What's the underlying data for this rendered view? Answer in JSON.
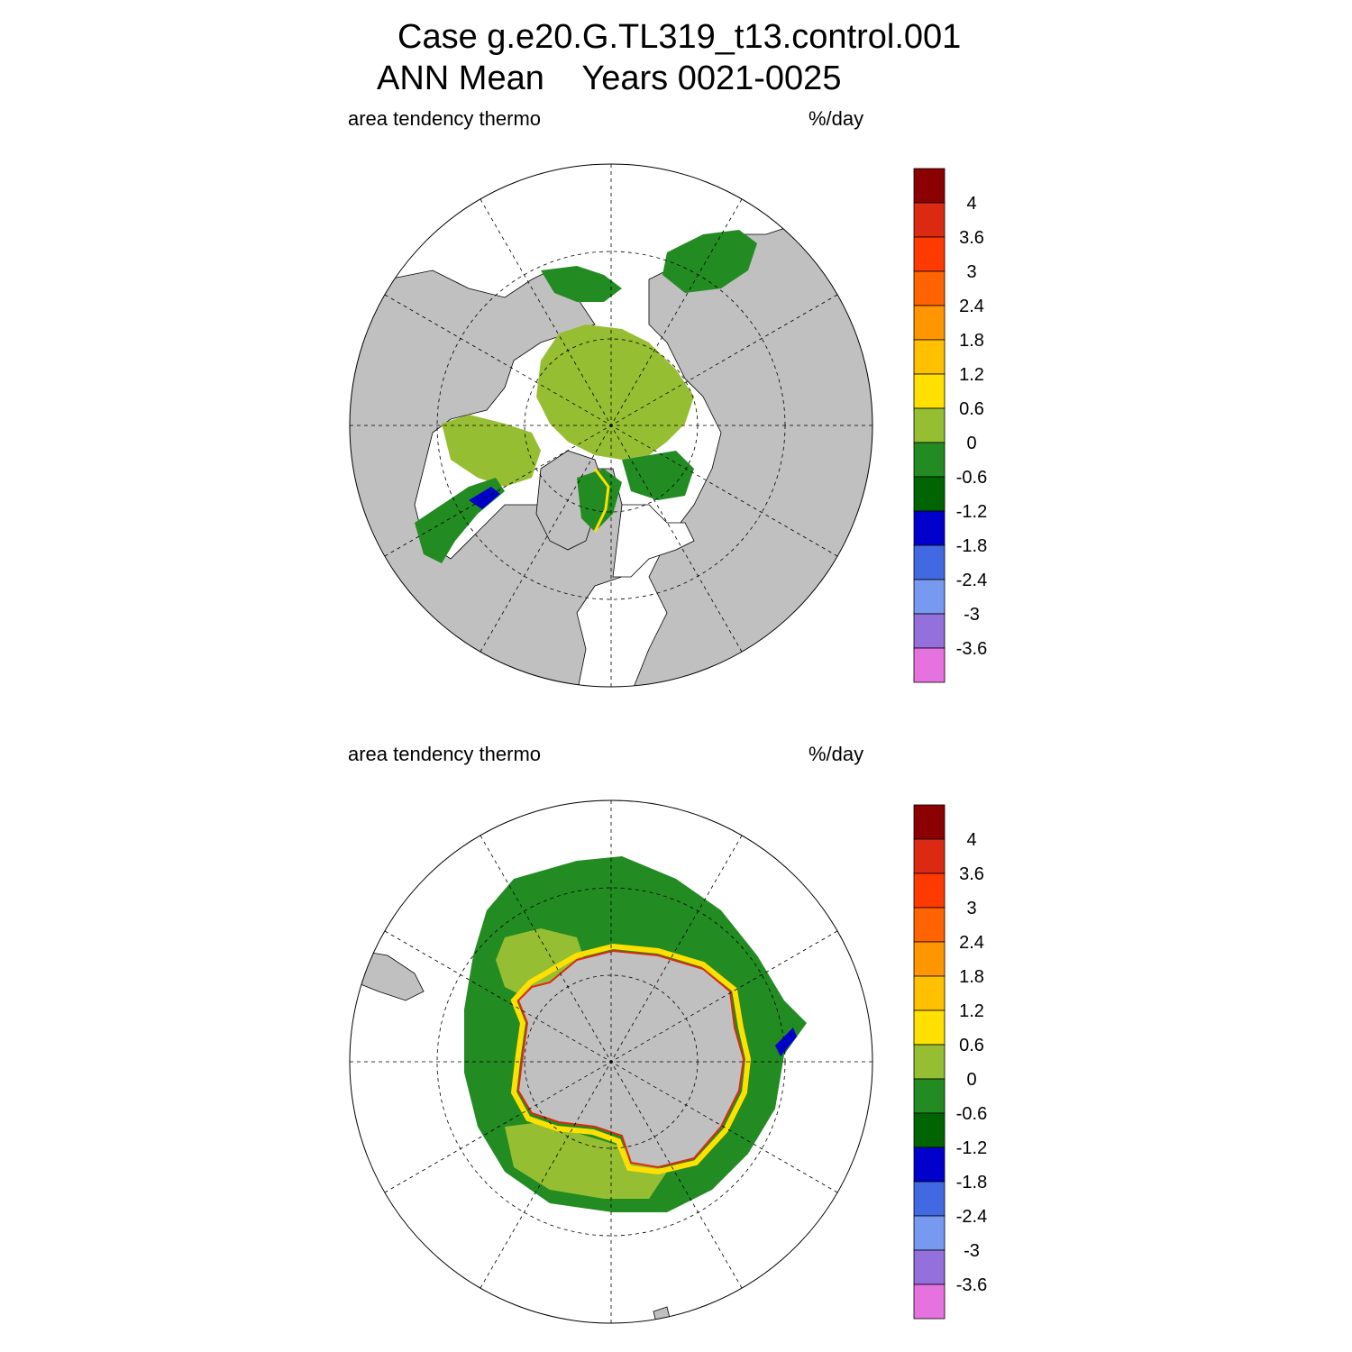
{
  "header": {
    "line1": "Case g.e20.G.TL319_t13.control.001",
    "line2": "ANN Mean    Years 0021-0025"
  },
  "panels": [
    {
      "id": "north",
      "variable": "area tendency thermo",
      "units": "%/day"
    },
    {
      "id": "south",
      "variable": "area tendency thermo",
      "units": "%/day"
    }
  ],
  "colorbar": {
    "colors": [
      "#8b0000",
      "#dc2a12",
      "#ff3a00",
      "#ff6400",
      "#ff9600",
      "#ffc000",
      "#ffe000",
      "#96be32",
      "#228b22",
      "#006400",
      "#0000cd",
      "#4169e1",
      "#7799f0",
      "#9370db",
      "#e672e0"
    ],
    "labels": [
      "4",
      "3.6",
      "3",
      "2.4",
      "1.8",
      "1.2",
      "0.6",
      "0",
      "-0.6",
      "-1.2",
      "-1.8",
      "-2.4",
      "-3",
      "-3.6"
    ]
  },
  "map_colors": {
    "land": "#c0c0c0",
    "ocean": "#ffffff",
    "ice_neutral": "#96be32",
    "ice_melt": "#228b22",
    "ice_strong_melt": "#006400",
    "ice_growth": "#ffe000"
  }
}
